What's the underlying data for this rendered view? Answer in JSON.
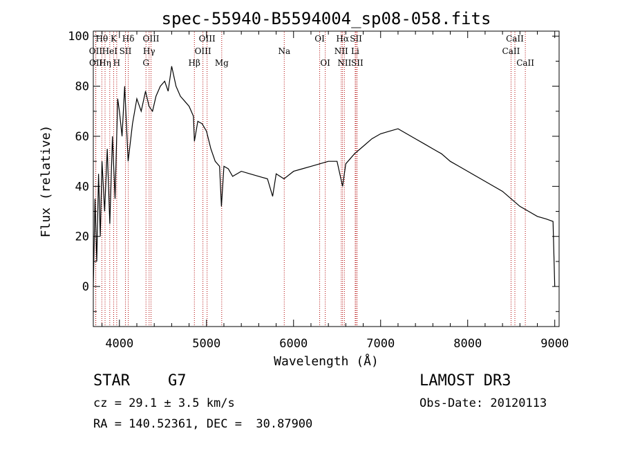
{
  "chart_data": {
    "type": "line",
    "title": "spec-55940-B5594004_sp08-058.fits",
    "xlabel": "Wavelength (Å)",
    "ylabel": "Flux (relative)",
    "xlim": [
      3700,
      9050
    ],
    "ylim": [
      -16,
      102
    ],
    "xticks": [
      4000,
      5000,
      6000,
      7000,
      8000,
      9000
    ],
    "yticks": [
      0,
      20,
      40,
      60,
      80,
      100
    ],
    "series": [
      {
        "name": "flux",
        "x": [
          3700,
          3720,
          3740,
          3760,
          3780,
          3800,
          3830,
          3860,
          3890,
          3920,
          3950,
          3980,
          4000,
          4030,
          4060,
          4100,
          4150,
          4200,
          4250,
          4300,
          4340,
          4380,
          4420,
          4470,
          4520,
          4560,
          4600,
          4650,
          4700,
          4750,
          4800,
          4850,
          4861,
          4900,
          4950,
          5000,
          5050,
          5100,
          5150,
          5172,
          5200,
          5250,
          5300,
          5400,
          5500,
          5600,
          5700,
          5760,
          5800,
          5890,
          6000,
          6100,
          6200,
          6300,
          6400,
          6500,
          6563,
          6600,
          6700,
          6800,
          6900,
          7000,
          7100,
          7200,
          7300,
          7400,
          7500,
          7600,
          7700,
          7800,
          7900,
          8000,
          8100,
          8200,
          8300,
          8400,
          8500,
          8600,
          8700,
          8800,
          8900,
          8980,
          9000
        ],
        "y": [
          0,
          35,
          10,
          45,
          20,
          50,
          30,
          55,
          25,
          60,
          35,
          75,
          70,
          60,
          80,
          50,
          65,
          75,
          70,
          78,
          72,
          70,
          76,
          80,
          82,
          78,
          88,
          80,
          76,
          74,
          72,
          68,
          58,
          66,
          65,
          62,
          55,
          50,
          48,
          32,
          48,
          47,
          44,
          46,
          45,
          44,
          43,
          36,
          45,
          43,
          46,
          47,
          48,
          49,
          50,
          50,
          40,
          49,
          53,
          56,
          59,
          61,
          62,
          63,
          61,
          59,
          57,
          55,
          53,
          50,
          48,
          46,
          44,
          42,
          40,
          38,
          35,
          32,
          30,
          28,
          27,
          26,
          0
        ]
      }
    ],
    "spectral_lines": [
      {
        "label": "Hθ",
        "wave": 3798,
        "row": 0
      },
      {
        "label": "OII",
        "wave": 3727,
        "row": 1
      },
      {
        "label": "OII",
        "wave": 3729,
        "row": 2
      },
      {
        "label": "Hη",
        "wave": 3835,
        "row": 2
      },
      {
        "label": "K",
        "wave": 3934,
        "row": 0
      },
      {
        "label": "HeI",
        "wave": 3889,
        "row": 1
      },
      {
        "label": "SII",
        "wave": 4069,
        "row": 1
      },
      {
        "label": "H",
        "wave": 3969,
        "row": 2
      },
      {
        "label": "Hδ",
        "wave": 4102,
        "row": 0
      },
      {
        "label": "OIII",
        "wave": 4363,
        "row": 0
      },
      {
        "label": "Hγ",
        "wave": 4341,
        "row": 1
      },
      {
        "label": "G",
        "wave": 4305,
        "row": 2
      },
      {
        "label": "Hβ",
        "wave": 4861,
        "row": 2
      },
      {
        "label": "OIII",
        "wave": 5007,
        "row": 0
      },
      {
        "label": "OIII",
        "wave": 4959,
        "row": 1
      },
      {
        "label": "Mg",
        "wave": 5175,
        "row": 2
      },
      {
        "label": "Na",
        "wave": 5893,
        "row": 1
      },
      {
        "label": "OI",
        "wave": 6300,
        "row": 0
      },
      {
        "label": "OI",
        "wave": 6364,
        "row": 2
      },
      {
        "label": "Hα",
        "wave": 6563,
        "row": 0
      },
      {
        "label": "NII",
        "wave": 6548,
        "row": 1
      },
      {
        "label": "NII",
        "wave": 6584,
        "row": 2
      },
      {
        "label": "SII",
        "wave": 6717,
        "row": 0
      },
      {
        "label": "Li",
        "wave": 6708,
        "row": 1
      },
      {
        "label": "SII",
        "wave": 6731,
        "row": 2
      },
      {
        "label": "CaII",
        "wave": 8542,
        "row": 0
      },
      {
        "label": "CaII",
        "wave": 8498,
        "row": 1
      },
      {
        "label": "CaII",
        "wave": 8662,
        "row": 2
      }
    ]
  },
  "info": {
    "class": "STAR",
    "subclass": "G7",
    "survey": "LAMOST DR3",
    "cz": "cz = 29.1 ± 3.5 km/s",
    "obs_date": "Obs-Date: 20120113",
    "coords": "RA = 140.52361, DEC =  30.87900"
  },
  "colors": {
    "line_marker": "#b00000",
    "spectrum": "#000000"
  }
}
